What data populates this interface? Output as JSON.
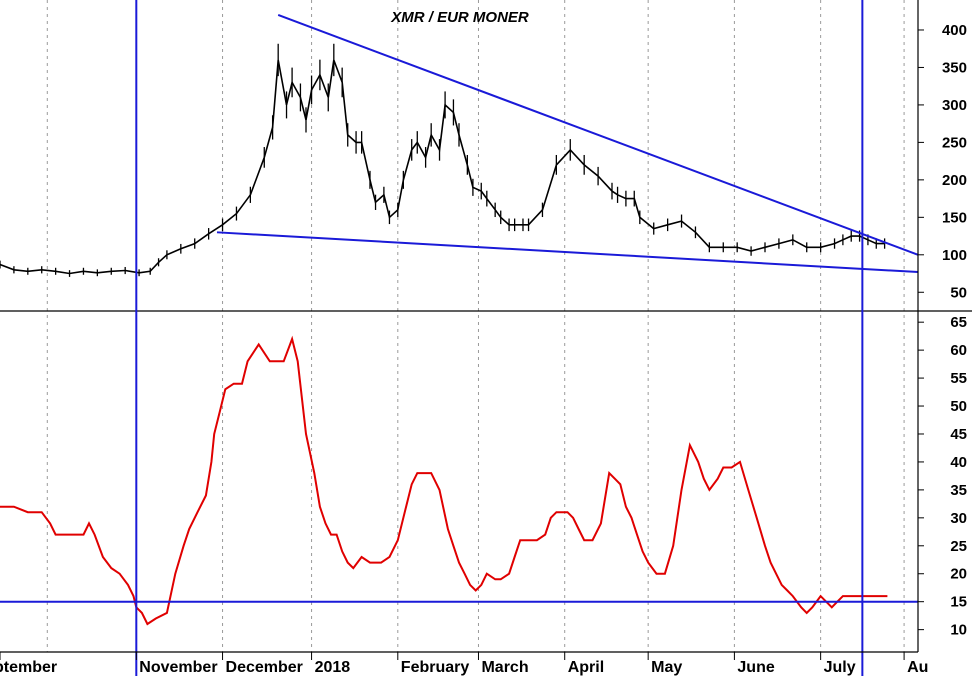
{
  "colors": {
    "price": "#000000",
    "oscillator": "#e00000",
    "trendlines": "#1a1ad8",
    "grid": "#9a9a9a"
  },
  "chart_data": [
    {
      "type": "candlestick",
      "title": "XMR / EUR MONER",
      "yticks": [
        50,
        100,
        150,
        200,
        250,
        300,
        350,
        400
      ],
      "ylim": [
        25,
        440
      ],
      "xlim": [
        0,
        330
      ],
      "series": [
        {
          "x": [
            0,
            5,
            10,
            15,
            20,
            25,
            30,
            35,
            40,
            45,
            50,
            54,
            57,
            60,
            65,
            70,
            75,
            80,
            85,
            90,
            95,
            98,
            100,
            103,
            105,
            108,
            110,
            112,
            115,
            118,
            120,
            123,
            125,
            128,
            130,
            133,
            135,
            138,
            140,
            143,
            145,
            148,
            150,
            153,
            155,
            158,
            160,
            163,
            165,
            168,
            170,
            173,
            175,
            178,
            180,
            183,
            185,
            188,
            190,
            195,
            200,
            205,
            210,
            215,
            220,
            222,
            225,
            228,
            230,
            235,
            240,
            245,
            250,
            255,
            260,
            265,
            270,
            275,
            280,
            285,
            290,
            295,
            300,
            303,
            306,
            309,
            312,
            315,
            318
          ],
          "values": [
            87,
            80,
            78,
            80,
            78,
            75,
            78,
            76,
            78,
            79,
            76,
            78,
            90,
            100,
            108,
            115,
            128,
            140,
            155,
            180,
            230,
            270,
            360,
            300,
            330,
            310,
            280,
            320,
            340,
            310,
            360,
            330,
            260,
            250,
            250,
            200,
            170,
            180,
            150,
            160,
            200,
            240,
            250,
            230,
            260,
            240,
            300,
            290,
            260,
            220,
            190,
            185,
            175,
            160,
            150,
            140,
            140,
            140,
            140,
            160,
            220,
            240,
            220,
            205,
            185,
            180,
            175,
            175,
            150,
            135,
            140,
            145,
            130,
            110,
            110,
            110,
            105,
            110,
            115,
            120,
            110,
            110,
            115,
            120,
            125,
            125,
            120,
            115,
            115
          ]
        }
      ],
      "trendlines": [
        {
          "x": [
            100,
            330
          ],
          "values": [
            420,
            100
          ]
        },
        {
          "x": [
            78,
            330
          ],
          "values": [
            130,
            77
          ]
        }
      ]
    },
    {
      "type": "line",
      "yticks": [
        10,
        15,
        20,
        25,
        30,
        35,
        40,
        45,
        50,
        55,
        60,
        65
      ],
      "ylim": [
        6,
        67
      ],
      "xlim": [
        0,
        330
      ],
      "hline": 15,
      "series": [
        {
          "x": [
            0,
            5,
            10,
            15,
            18,
            20,
            24,
            26,
            28,
            30,
            32,
            34,
            37,
            40,
            43,
            46,
            48,
            49,
            51,
            53,
            56,
            60,
            63,
            66,
            68,
            71,
            74,
            76,
            77,
            79,
            81,
            84,
            87,
            89,
            93,
            97,
            99,
            102,
            105,
            107,
            110,
            113,
            115,
            117,
            119,
            121,
            123,
            125,
            127,
            130,
            133,
            135,
            137,
            140,
            143,
            146,
            148,
            150,
            152,
            155,
            158,
            161,
            163,
            165,
            167,
            169,
            171,
            173,
            175,
            178,
            180,
            183,
            185,
            187,
            190,
            193,
            196,
            198,
            200,
            202,
            204,
            206,
            208,
            210,
            213,
            216,
            219,
            221,
            223,
            225,
            227,
            229,
            231,
            233,
            236,
            239,
            242,
            245,
            248,
            251,
            253,
            255,
            258,
            260,
            263,
            266,
            269,
            272,
            275,
            277,
            279,
            281,
            283,
            285,
            288,
            290,
            292,
            295,
            297,
            299,
            301,
            303,
            305,
            307,
            309,
            311,
            313,
            315,
            317,
            319
          ],
          "values": [
            32,
            32,
            31,
            31,
            29,
            27,
            27,
            27,
            27,
            27,
            29,
            27,
            23,
            21,
            20,
            18,
            16,
            14,
            13,
            11,
            12,
            13,
            20,
            25,
            28,
            31,
            34,
            40,
            45,
            49,
            53,
            54,
            54,
            58,
            61,
            58,
            58,
            58,
            62,
            58,
            45,
            38,
            32,
            29,
            27,
            27,
            24,
            22,
            21,
            23,
            22,
            22,
            22,
            23,
            26,
            32,
            36,
            38,
            38,
            38,
            35,
            28,
            25,
            22,
            20,
            18,
            17,
            18,
            20,
            19,
            19,
            20,
            23,
            26,
            26,
            26,
            27,
            30,
            31,
            31,
            31,
            30,
            28,
            26,
            26,
            29,
            38,
            37,
            36,
            32,
            30,
            27,
            24,
            22,
            20,
            20,
            25,
            35,
            43,
            40,
            37,
            35,
            37,
            39,
            39,
            40,
            35,
            30,
            25,
            22,
            20,
            18,
            17,
            16,
            14,
            13,
            14,
            16,
            15,
            14,
            15,
            16,
            16,
            16,
            16,
            16,
            16,
            16,
            16,
            16
          ]
        }
      ]
    }
  ],
  "x_axis": {
    "months": [
      {
        "label": "ptember",
        "x": 0
      },
      {
        "label": "November",
        "x": 49
      },
      {
        "label": "December",
        "x": 80
      },
      {
        "label": "2018",
        "x": 112
      },
      {
        "label": "February",
        "x": 143
      },
      {
        "label": "March",
        "x": 172
      },
      {
        "label": "April",
        "x": 203
      },
      {
        "label": "May",
        "x": 233
      },
      {
        "label": "June",
        "x": 264
      },
      {
        "label": "July",
        "x": 295
      },
      {
        "label": "Au",
        "x": 325
      }
    ],
    "gridlines": [
      17,
      49,
      80,
      112,
      143,
      172,
      203,
      233,
      264,
      295,
      325
    ],
    "vlines": [
      49,
      310
    ]
  }
}
